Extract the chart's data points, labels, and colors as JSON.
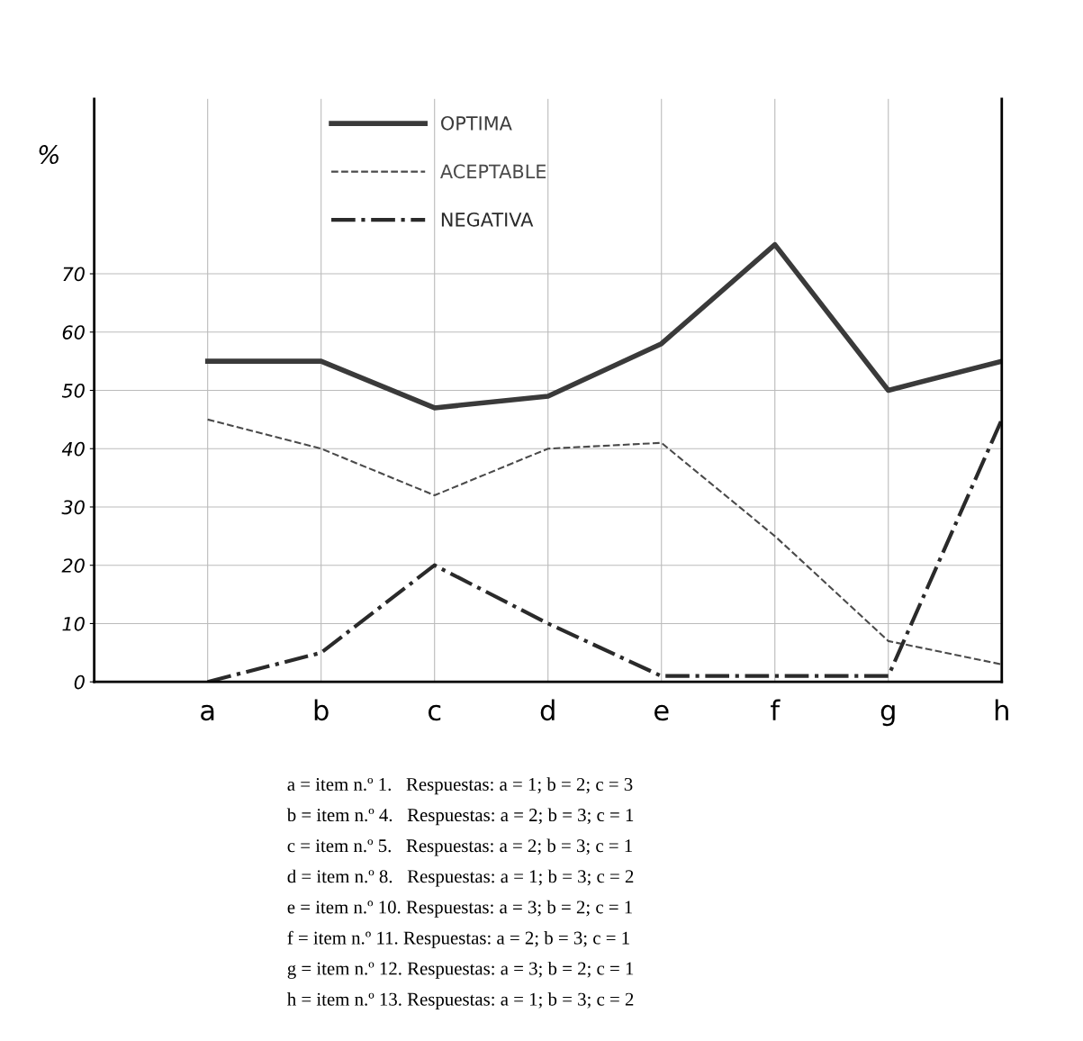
{
  "chart_data": {
    "type": "line",
    "ylabel": "%",
    "categories": [
      "a",
      "b",
      "c",
      "d",
      "e",
      "f",
      "g",
      "h"
    ],
    "series": [
      {
        "name": "OPTIMA",
        "color": "#3a3a3a",
        "line_style": "solid",
        "values": [
          55,
          55,
          47,
          49,
          58,
          75,
          50,
          55
        ]
      },
      {
        "name": "ACEPTABLE",
        "color": "#4a4a4a",
        "line_style": "dashed",
        "values": [
          45,
          40,
          32,
          40,
          41,
          25,
          7,
          3
        ]
      },
      {
        "name": "NEGATIVA",
        "color": "#2a2a2a",
        "line_style": "dashdot",
        "values": [
          0,
          5,
          20,
          10,
          1,
          1,
          1,
          45
        ]
      }
    ],
    "ylim": [
      0,
      100
    ],
    "yticks": [
      0,
      10,
      20,
      30,
      40,
      50,
      60,
      70
    ],
    "grid": true,
    "legend": "top",
    "marker": "none",
    "annotations": [
      "a = item n.º 1.   Respuestas: a = 1; b = 2; c = 3",
      "b = item n.º 4.   Respuestas: a = 2; b = 3; c = 1",
      "c = item n.º 5.   Respuestas: a = 2; b = 3; c = 1",
      "d = item n.º 8.   Respuestas: a = 1; b = 3; c = 2",
      "e = item n.º 10. Respuestas: a = 3; b = 2; c = 1",
      "f = item n.º 11. Respuestas: a = 2; b = 3; c = 1",
      "g = item n.º 12. Respuestas: a = 3; b = 2; c = 1",
      "h = item n.º 13. Respuestas: a = 1; b = 3; c = 2"
    ]
  }
}
